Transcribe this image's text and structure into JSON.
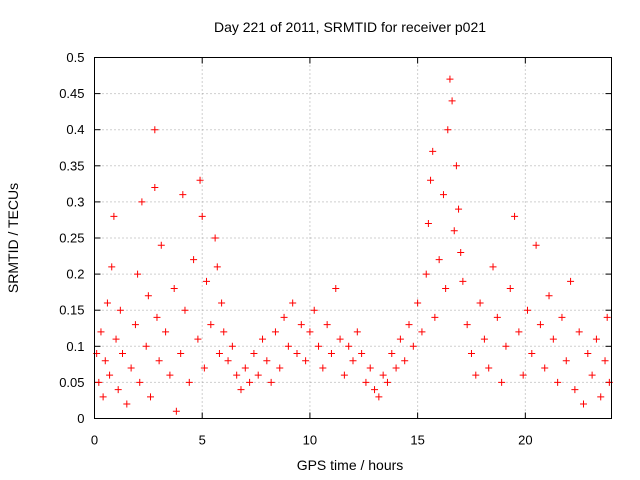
{
  "chart_data": {
    "type": "scatter",
    "title": "Day 221 of 2011, SRMTID for receiver p021",
    "xlabel": "GPS time / hours",
    "ylabel": "SRMTID / TECUs",
    "xlim": [
      0,
      24
    ],
    "ylim": [
      0,
      0.5
    ],
    "xticks": [
      0,
      5,
      10,
      15,
      20
    ],
    "xtick_labels": [
      "0",
      "5",
      "10",
      "15",
      "20"
    ],
    "yticks": [
      0,
      0.05,
      0.1,
      0.15,
      0.2,
      0.25,
      0.3,
      0.35,
      0.4,
      0.45,
      0.5
    ],
    "ytick_labels": [
      "0",
      "0.05",
      "0.1",
      "0.15",
      "0.2",
      "0.25",
      "0.3",
      "0.35",
      "0.4",
      "0.45",
      "0.5"
    ],
    "grid": true,
    "marker": "+",
    "color": "#ff0000",
    "series": [
      {
        "name": "SRMTID",
        "points": [
          [
            0.1,
            0.09
          ],
          [
            0.2,
            0.05
          ],
          [
            0.3,
            0.12
          ],
          [
            0.4,
            0.03
          ],
          [
            0.5,
            0.08
          ],
          [
            0.6,
            0.16
          ],
          [
            0.7,
            0.06
          ],
          [
            0.8,
            0.21
          ],
          [
            0.9,
            0.28
          ],
          [
            1.0,
            0.11
          ],
          [
            1.1,
            0.04
          ],
          [
            1.2,
            0.15
          ],
          [
            1.3,
            0.09
          ],
          [
            1.5,
            0.02
          ],
          [
            1.7,
            0.07
          ],
          [
            1.9,
            0.13
          ],
          [
            2.0,
            0.2
          ],
          [
            2.1,
            0.05
          ],
          [
            2.2,
            0.3
          ],
          [
            2.4,
            0.1
          ],
          [
            2.5,
            0.17
          ],
          [
            2.6,
            0.03
          ],
          [
            2.8,
            0.4
          ],
          [
            2.8,
            0.32
          ],
          [
            2.9,
            0.14
          ],
          [
            3.0,
            0.08
          ],
          [
            3.1,
            0.24
          ],
          [
            3.3,
            0.12
          ],
          [
            3.5,
            0.06
          ],
          [
            3.7,
            0.18
          ],
          [
            3.8,
            0.01
          ],
          [
            4.0,
            0.09
          ],
          [
            4.1,
            0.31
          ],
          [
            4.2,
            0.15
          ],
          [
            4.4,
            0.05
          ],
          [
            4.6,
            0.22
          ],
          [
            4.8,
            0.11
          ],
          [
            4.9,
            0.33
          ],
          [
            5.0,
            0.28
          ],
          [
            5.1,
            0.07
          ],
          [
            5.2,
            0.19
          ],
          [
            5.4,
            0.13
          ],
          [
            5.6,
            0.25
          ],
          [
            5.7,
            0.21
          ],
          [
            5.8,
            0.09
          ],
          [
            5.9,
            0.16
          ],
          [
            6.0,
            0.12
          ],
          [
            6.2,
            0.08
          ],
          [
            6.4,
            0.1
          ],
          [
            6.6,
            0.06
          ],
          [
            6.8,
            0.04
          ],
          [
            7.0,
            0.07
          ],
          [
            7.2,
            0.05
          ],
          [
            7.4,
            0.09
          ],
          [
            7.6,
            0.06
          ],
          [
            7.8,
            0.11
          ],
          [
            8.0,
            0.08
          ],
          [
            8.2,
            0.05
          ],
          [
            8.4,
            0.12
          ],
          [
            8.6,
            0.07
          ],
          [
            8.8,
            0.14
          ],
          [
            9.0,
            0.1
          ],
          [
            9.2,
            0.16
          ],
          [
            9.4,
            0.09
          ],
          [
            9.6,
            0.13
          ],
          [
            9.8,
            0.08
          ],
          [
            10.0,
            0.12
          ],
          [
            10.2,
            0.15
          ],
          [
            10.4,
            0.1
          ],
          [
            10.6,
            0.07
          ],
          [
            10.8,
            0.13
          ],
          [
            11.0,
            0.09
          ],
          [
            11.2,
            0.18
          ],
          [
            11.4,
            0.11
          ],
          [
            11.6,
            0.06
          ],
          [
            11.8,
            0.1
          ],
          [
            12.0,
            0.08
          ],
          [
            12.2,
            0.12
          ],
          [
            12.4,
            0.09
          ],
          [
            12.6,
            0.05
          ],
          [
            12.8,
            0.07
          ],
          [
            13.0,
            0.04
          ],
          [
            13.2,
            0.03
          ],
          [
            13.4,
            0.06
          ],
          [
            13.6,
            0.05
          ],
          [
            13.8,
            0.09
          ],
          [
            14.0,
            0.07
          ],
          [
            14.2,
            0.11
          ],
          [
            14.4,
            0.08
          ],
          [
            14.6,
            0.13
          ],
          [
            14.8,
            0.1
          ],
          [
            15.0,
            0.16
          ],
          [
            15.2,
            0.12
          ],
          [
            15.4,
            0.2
          ],
          [
            15.5,
            0.27
          ],
          [
            15.6,
            0.33
          ],
          [
            15.7,
            0.37
          ],
          [
            15.8,
            0.14
          ],
          [
            16.0,
            0.22
          ],
          [
            16.2,
            0.31
          ],
          [
            16.3,
            0.18
          ],
          [
            16.4,
            0.4
          ],
          [
            16.5,
            0.47
          ],
          [
            16.6,
            0.44
          ],
          [
            16.7,
            0.26
          ],
          [
            16.8,
            0.35
          ],
          [
            16.9,
            0.29
          ],
          [
            17.0,
            0.23
          ],
          [
            17.1,
            0.19
          ],
          [
            17.3,
            0.13
          ],
          [
            17.5,
            0.09
          ],
          [
            17.7,
            0.06
          ],
          [
            17.9,
            0.16
          ],
          [
            18.1,
            0.11
          ],
          [
            18.3,
            0.07
          ],
          [
            18.5,
            0.21
          ],
          [
            18.7,
            0.14
          ],
          [
            18.9,
            0.05
          ],
          [
            19.1,
            0.1
          ],
          [
            19.3,
            0.18
          ],
          [
            19.5,
            0.28
          ],
          [
            19.7,
            0.12
          ],
          [
            19.9,
            0.06
          ],
          [
            20.1,
            0.15
          ],
          [
            20.3,
            0.09
          ],
          [
            20.5,
            0.24
          ],
          [
            20.7,
            0.13
          ],
          [
            20.9,
            0.07
          ],
          [
            21.1,
            0.17
          ],
          [
            21.3,
            0.11
          ],
          [
            21.5,
            0.05
          ],
          [
            21.7,
            0.14
          ],
          [
            21.9,
            0.08
          ],
          [
            22.1,
            0.19
          ],
          [
            22.3,
            0.04
          ],
          [
            22.5,
            0.12
          ],
          [
            22.7,
            0.02
          ],
          [
            22.9,
            0.09
          ],
          [
            23.1,
            0.06
          ],
          [
            23.3,
            0.11
          ],
          [
            23.5,
            0.03
          ],
          [
            23.7,
            0.08
          ],
          [
            23.8,
            0.14
          ],
          [
            23.9,
            0.05
          ]
        ]
      }
    ]
  }
}
